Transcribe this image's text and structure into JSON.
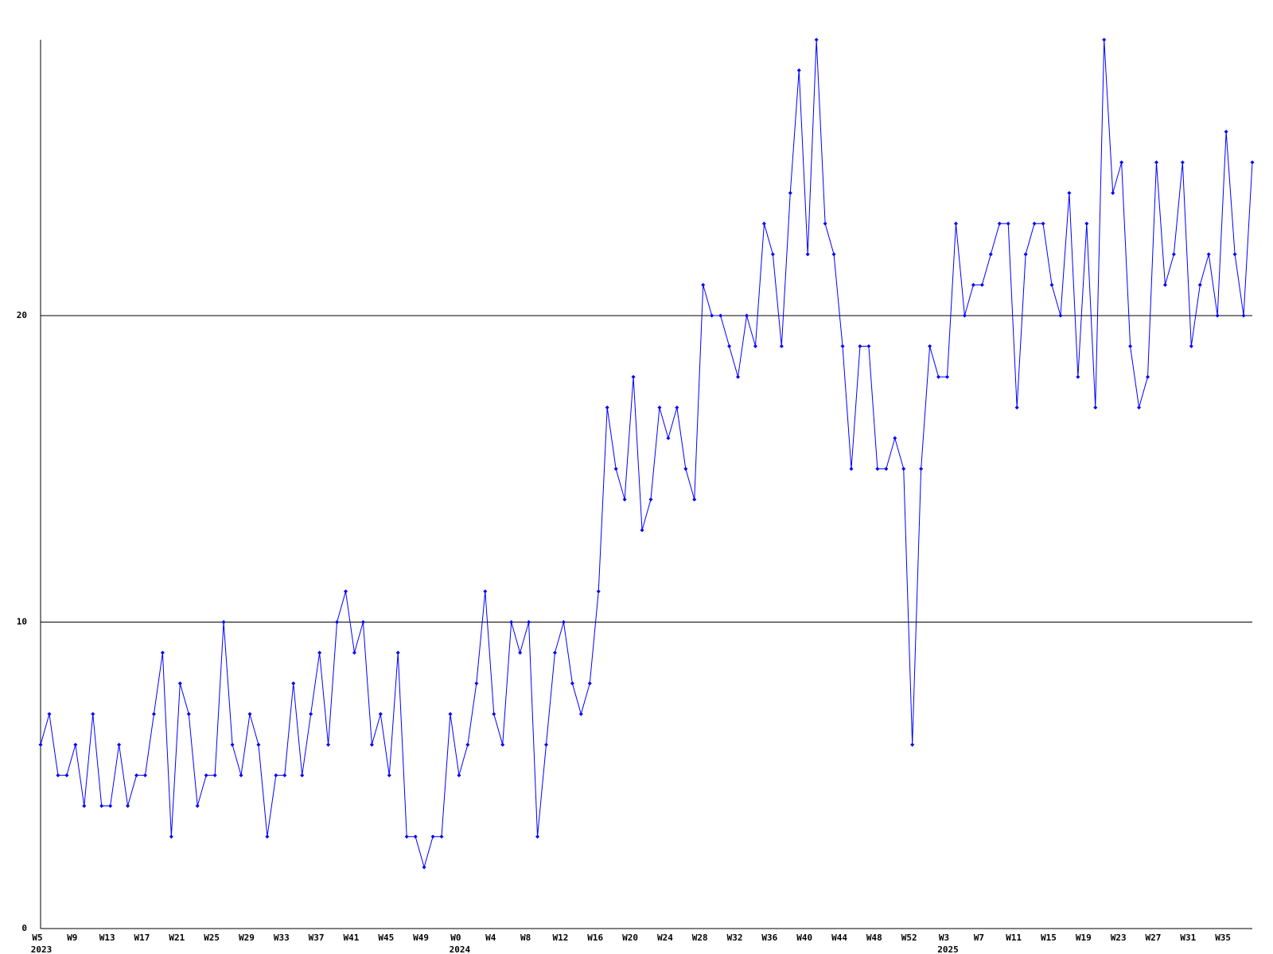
{
  "chart_data": {
    "type": "line",
    "categories": [
      "W5",
      null,
      null,
      null,
      "W9",
      null,
      null,
      null,
      "W13",
      null,
      null,
      null,
      "W17",
      null,
      null,
      null,
      "W21",
      null,
      null,
      null,
      "W25",
      null,
      null,
      null,
      "W29",
      null,
      null,
      null,
      "W33",
      null,
      null,
      null,
      "W37",
      null,
      null,
      null,
      "W41",
      null,
      null,
      null,
      "W45",
      null,
      null,
      null,
      "W49",
      null,
      null,
      null,
      "W0",
      null,
      null,
      null,
      "W4",
      null,
      null,
      null,
      "W8",
      null,
      null,
      null,
      "W12",
      null,
      null,
      null,
      "W16",
      null,
      null,
      null,
      "W20",
      null,
      null,
      null,
      "W24",
      null,
      null,
      null,
      "W28",
      null,
      null,
      null,
      "W32",
      null,
      null,
      null,
      "W36",
      null,
      null,
      null,
      "W40",
      null,
      null,
      null,
      "W44",
      null,
      null,
      null,
      "W48",
      null,
      null,
      null,
      "W52",
      null,
      null,
      null,
      "W3",
      null,
      null,
      null,
      "W7",
      null,
      null,
      null,
      "W11",
      null,
      null,
      null,
      "W15",
      null,
      null,
      null,
      "W19",
      null,
      null,
      null,
      "W23",
      null,
      null,
      null,
      "W27",
      null,
      null,
      null,
      "W31",
      null,
      null,
      null,
      "W35",
      null,
      null,
      null
    ],
    "category_years": [
      "2023",
      null,
      null,
      null,
      null,
      null,
      null,
      null,
      null,
      null,
      null,
      null,
      null,
      null,
      null,
      null,
      null,
      null,
      null,
      null,
      null,
      null,
      null,
      null,
      null,
      null,
      null,
      null,
      null,
      null,
      null,
      null,
      null,
      null,
      null,
      null,
      null,
      null,
      null,
      null,
      null,
      null,
      null,
      null,
      null,
      null,
      null,
      null,
      "2024",
      null,
      null,
      null,
      null,
      null,
      null,
      null,
      null,
      null,
      null,
      null,
      null,
      null,
      null,
      null,
      null,
      null,
      null,
      null,
      null,
      null,
      null,
      null,
      null,
      null,
      null,
      null,
      null,
      null,
      null,
      null,
      null,
      null,
      null,
      null,
      null,
      null,
      null,
      null,
      null,
      null,
      null,
      null,
      null,
      null,
      null,
      null,
      null,
      null,
      null,
      null,
      null,
      null,
      null,
      null,
      "2025",
      null,
      null,
      null,
      null,
      null,
      null,
      null,
      null,
      null,
      null,
      null,
      null,
      null,
      null,
      null,
      null,
      null,
      null,
      null,
      null,
      null,
      null,
      null,
      null,
      null,
      null,
      null,
      null,
      null,
      null,
      null,
      null,
      null,
      null,
      null
    ],
    "series": [
      {
        "color": "#0000ff",
        "values": [
          6,
          7,
          5,
          5,
          6,
          4,
          7,
          4,
          4,
          6,
          4,
          5,
          5,
          7,
          9,
          3,
          8,
          7,
          4,
          5,
          5,
          10,
          6,
          5,
          7,
          6,
          3,
          5,
          5,
          8,
          5,
          7,
          9,
          6,
          10,
          11,
          9,
          10,
          6,
          7,
          5,
          9,
          3,
          3,
          2,
          3,
          3,
          7,
          5,
          6,
          8,
          11,
          7,
          6,
          10,
          9,
          10,
          3,
          6,
          9,
          10,
          8,
          7,
          8,
          11,
          17,
          15,
          14,
          18,
          13,
          14,
          17,
          16,
          17,
          15,
          14,
          21,
          20,
          20,
          19,
          18,
          20,
          19,
          23,
          22,
          19,
          24,
          28,
          22,
          29,
          23,
          22,
          19,
          15,
          19,
          19,
          15,
          15,
          16,
          15,
          6,
          15,
          19,
          18,
          18,
          23,
          20,
          21,
          21,
          22,
          23,
          23,
          17,
          22,
          23,
          23,
          21,
          20,
          24,
          18,
          23,
          17,
          29,
          24,
          25,
          19,
          17,
          18,
          25,
          21,
          22,
          25,
          19,
          21,
          22,
          20,
          26,
          22,
          20,
          25
        ]
      }
    ],
    "ylim": [
      0,
      29
    ],
    "yticks": [
      0,
      10,
      20
    ],
    "grid": true
  }
}
